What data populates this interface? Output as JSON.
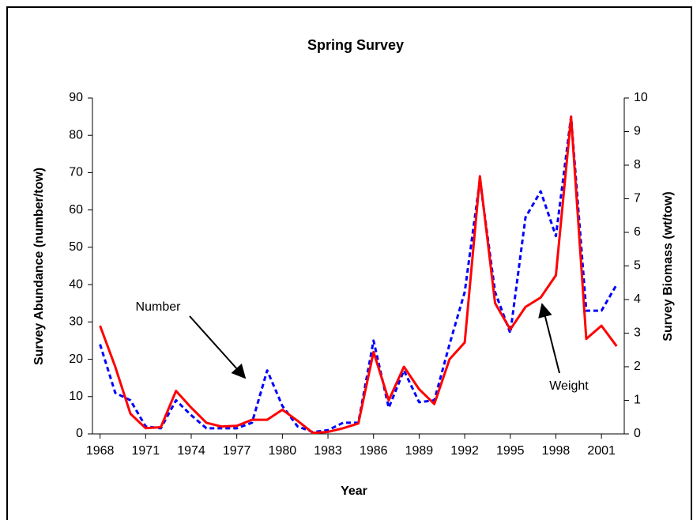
{
  "chart_data": {
    "type": "line",
    "title": "Spring Survey",
    "x_label": "Year",
    "y_label": "Survey Abundance (number/tow)",
    "y2_label": "Survey Biomass (wt/tow)",
    "x": [
      1968,
      1969,
      1970,
      1971,
      1972,
      1973,
      1974,
      1975,
      1976,
      1977,
      1978,
      1979,
      1980,
      1981,
      1982,
      1983,
      1984,
      1985,
      1986,
      1987,
      1988,
      1989,
      1990,
      1991,
      1992,
      1993,
      1994,
      1995,
      1996,
      1997,
      1998,
      1999,
      2000,
      2001,
      2002
    ],
    "series": [
      {
        "name": "Number",
        "color": "#0000ff",
        "dashed": true,
        "values": [
          24,
          11,
          9,
          2,
          1.5,
          9,
          5,
          1.5,
          1.5,
          1.5,
          3,
          17,
          7.5,
          2,
          0.5,
          1,
          3,
          3,
          25,
          7,
          17,
          8.5,
          9,
          24,
          38,
          68,
          38,
          27,
          58,
          65,
          53,
          85,
          33,
          33,
          40
        ]
      },
      {
        "name": "Weight",
        "color": "#ff0000",
        "axis": "y2",
        "values": [
          3.22,
          2.0,
          0.6,
          0.17,
          0.2,
          1.28,
          0.78,
          0.33,
          0.22,
          0.24,
          0.42,
          0.42,
          0.72,
          0.39,
          0.03,
          0.06,
          0.17,
          0.31,
          2.44,
          1.0,
          2.0,
          1.33,
          0.89,
          2.22,
          2.72,
          7.67,
          3.89,
          3.11,
          3.78,
          4.06,
          4.72,
          9.44,
          2.83,
          3.22,
          2.61
        ]
      }
    ],
    "xlim": [
      1967.5,
      2002.5
    ],
    "xticks": [
      1968,
      1971,
      1974,
      1977,
      1980,
      1983,
      1986,
      1989,
      1992,
      1995,
      1998,
      2001
    ],
    "ylim": [
      0,
      90
    ],
    "yticks": [
      0,
      10,
      20,
      30,
      40,
      50,
      60,
      70,
      80,
      90
    ],
    "y2lim": [
      0,
      10
    ],
    "y2ticks": [
      0,
      1,
      2,
      3,
      4,
      5,
      6,
      7,
      8,
      9,
      10
    ]
  }
}
